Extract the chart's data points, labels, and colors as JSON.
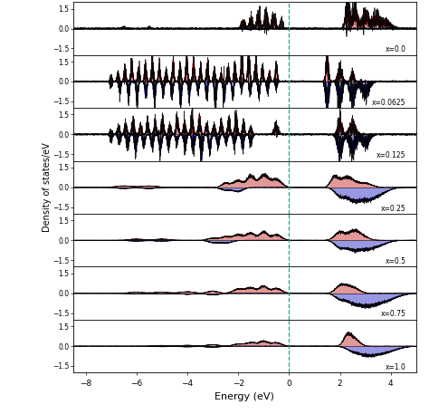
{
  "x_labels": [
    "x=0.0",
    "x=0.0625",
    "x=0.125",
    "x=0.25",
    "x=0.5",
    "x=0.75",
    "x=1.0"
  ],
  "xlim": [
    -8.5,
    5.0
  ],
  "y_lim": [
    -2.0,
    2.0
  ],
  "y_ticks": [
    -1.5,
    0,
    1.5
  ],
  "x_ticks": [
    -8,
    -6,
    -4,
    -2,
    0,
    2,
    4
  ],
  "fermi_line": 0.0,
  "xlabel": "Energy (eV)",
  "ylabel": "Density of states/eV",
  "color_up_fill": "#cc4444",
  "color_dn_fill": "#4444cc",
  "color_up_line": "#cc0000",
  "color_dn_line": "#0000cc",
  "color_total": "#000000",
  "fermi_color": "#00bb77",
  "n_panels": 7
}
